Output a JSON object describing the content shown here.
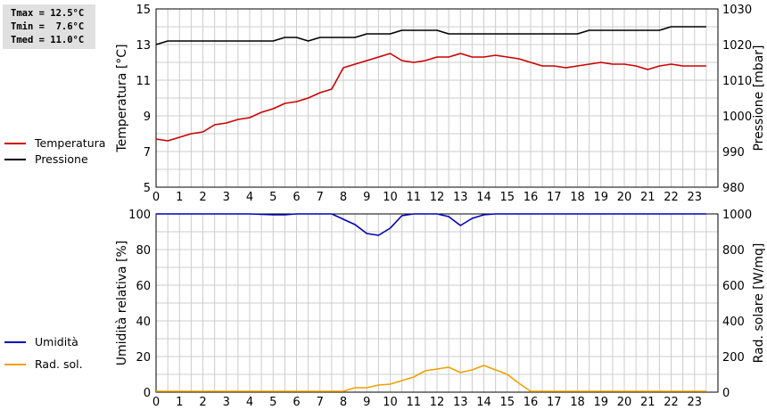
{
  "stats": {
    "tmax": "Tmax = 12.5°C",
    "tmin": "Tmin =  7.6°C",
    "tmed": "Tmed = 11.0°C"
  },
  "colors": {
    "temperature": "#cc0000",
    "pressure": "#000000",
    "humidity": "#0000bb",
    "solar": "#f0a000",
    "grid": "#cccccc"
  },
  "chart_data": [
    {
      "type": "line",
      "x_ticks": [
        0,
        1,
        2,
        3,
        4,
        5,
        6,
        7,
        8,
        9,
        10,
        11,
        12,
        13,
        14,
        15,
        16,
        17,
        18,
        19,
        20,
        21,
        22,
        23
      ],
      "ylabel": "Temperatura [°C]",
      "y2label": "Pressione [mbar]",
      "ylim": [
        5,
        15
      ],
      "y_ticks": [
        5,
        7,
        9,
        11,
        13,
        15
      ],
      "y2lim": [
        980,
        1030
      ],
      "y2_ticks": [
        980,
        990,
        1000,
        1010,
        1020,
        1030
      ],
      "grid": true,
      "series": [
        {
          "name": "Temperatura",
          "axis": "left",
          "x": [
            0,
            0.5,
            1,
            1.5,
            2,
            2.5,
            3,
            3.5,
            4,
            4.5,
            5,
            5.5,
            6,
            6.5,
            7,
            7.5,
            8,
            8.5,
            9,
            9.5,
            10,
            10.5,
            11,
            11.5,
            12,
            12.5,
            13,
            13.5,
            14,
            14.5,
            15,
            15.5,
            16,
            16.5,
            17,
            17.5,
            18,
            18.5,
            19,
            19.5,
            20,
            20.5,
            21,
            21.5,
            22,
            22.5,
            23,
            23.5
          ],
          "values": [
            7.7,
            7.6,
            7.8,
            8.0,
            8.1,
            8.5,
            8.6,
            8.8,
            8.9,
            9.2,
            9.4,
            9.7,
            9.8,
            10.0,
            10.3,
            10.5,
            11.7,
            11.9,
            12.1,
            12.3,
            12.5,
            12.1,
            12.0,
            12.1,
            12.3,
            12.3,
            12.5,
            12.3,
            12.3,
            12.4,
            12.3,
            12.2,
            12.0,
            11.8,
            11.8,
            11.7,
            11.8,
            11.9,
            12.0,
            11.9,
            11.9,
            11.8,
            11.6,
            11.8,
            11.9,
            11.8,
            11.8,
            11.8
          ]
        },
        {
          "name": "Pressione",
          "axis": "right",
          "x": [
            0,
            0.5,
            1,
            1.5,
            2,
            2.5,
            3,
            3.5,
            4,
            4.5,
            5,
            5.5,
            6,
            6.5,
            7,
            7.5,
            8,
            8.5,
            9,
            9.5,
            10,
            10.5,
            11,
            11.5,
            12,
            12.5,
            13,
            13.5,
            14,
            14.5,
            15,
            15.5,
            16,
            16.5,
            17,
            17.5,
            18,
            18.5,
            19,
            19.5,
            20,
            20.5,
            21,
            21.5,
            22,
            22.5,
            23,
            23.5
          ],
          "values": [
            1020,
            1021,
            1021,
            1021,
            1021,
            1021,
            1021,
            1021,
            1021,
            1021,
            1021,
            1022,
            1022,
            1021,
            1022,
            1022,
            1022,
            1022,
            1023,
            1023,
            1023,
            1024,
            1024,
            1024,
            1024,
            1023,
            1023,
            1023,
            1023,
            1023,
            1023,
            1023,
            1023,
            1023,
            1023,
            1023,
            1023,
            1024,
            1024,
            1024,
            1024,
            1024,
            1024,
            1024,
            1025,
            1025,
            1025,
            1025
          ]
        }
      ]
    },
    {
      "type": "line",
      "x_ticks": [
        0,
        1,
        2,
        3,
        4,
        5,
        6,
        7,
        8,
        9,
        10,
        11,
        12,
        13,
        14,
        15,
        16,
        17,
        18,
        19,
        20,
        21,
        22,
        23
      ],
      "ylabel": "Umidità relativa [%]",
      "y2label": "Rad. solare [W/mq]",
      "ylim": [
        0,
        100
      ],
      "y_ticks": [
        0,
        20,
        40,
        60,
        80,
        100
      ],
      "y2lim": [
        0,
        1000
      ],
      "y2_ticks": [
        0,
        200,
        400,
        600,
        800,
        1000
      ],
      "grid": true,
      "series": [
        {
          "name": "Umidità",
          "axis": "left",
          "x": [
            0,
            1,
            2,
            3,
            4,
            5,
            5.5,
            6,
            7,
            7.5,
            8,
            8.5,
            9,
            9.5,
            10,
            10.5,
            11,
            12,
            12.5,
            13,
            13.5,
            14,
            14.5,
            15,
            16,
            17,
            18,
            19,
            20,
            21,
            22,
            23,
            23.5
          ],
          "values": [
            100,
            100,
            100,
            100,
            100,
            99.5,
            99.5,
            100,
            100,
            100,
            97,
            94,
            89,
            88,
            92,
            99,
            100,
            100,
            98.5,
            93.5,
            97.5,
            99.5,
            100,
            100,
            100,
            100,
            100,
            100,
            100,
            100,
            100,
            100,
            100
          ]
        },
        {
          "name": "Rad. sol.",
          "axis": "right",
          "x": [
            0,
            1,
            2,
            3,
            4,
            5,
            6,
            7,
            8,
            8.5,
            9,
            9.5,
            10,
            10.5,
            11,
            11.5,
            12,
            12.5,
            13,
            13.5,
            14,
            14.5,
            15,
            15.5,
            16,
            17,
            18,
            19,
            20,
            21,
            22,
            23,
            23.5
          ],
          "values": [
            5,
            5,
            5,
            5,
            5,
            5,
            5,
            5,
            5,
            25,
            25,
            40,
            45,
            65,
            85,
            120,
            130,
            140,
            110,
            125,
            150,
            125,
            100,
            50,
            5,
            5,
            5,
            5,
            5,
            5,
            5,
            5,
            5
          ]
        }
      ]
    }
  ]
}
